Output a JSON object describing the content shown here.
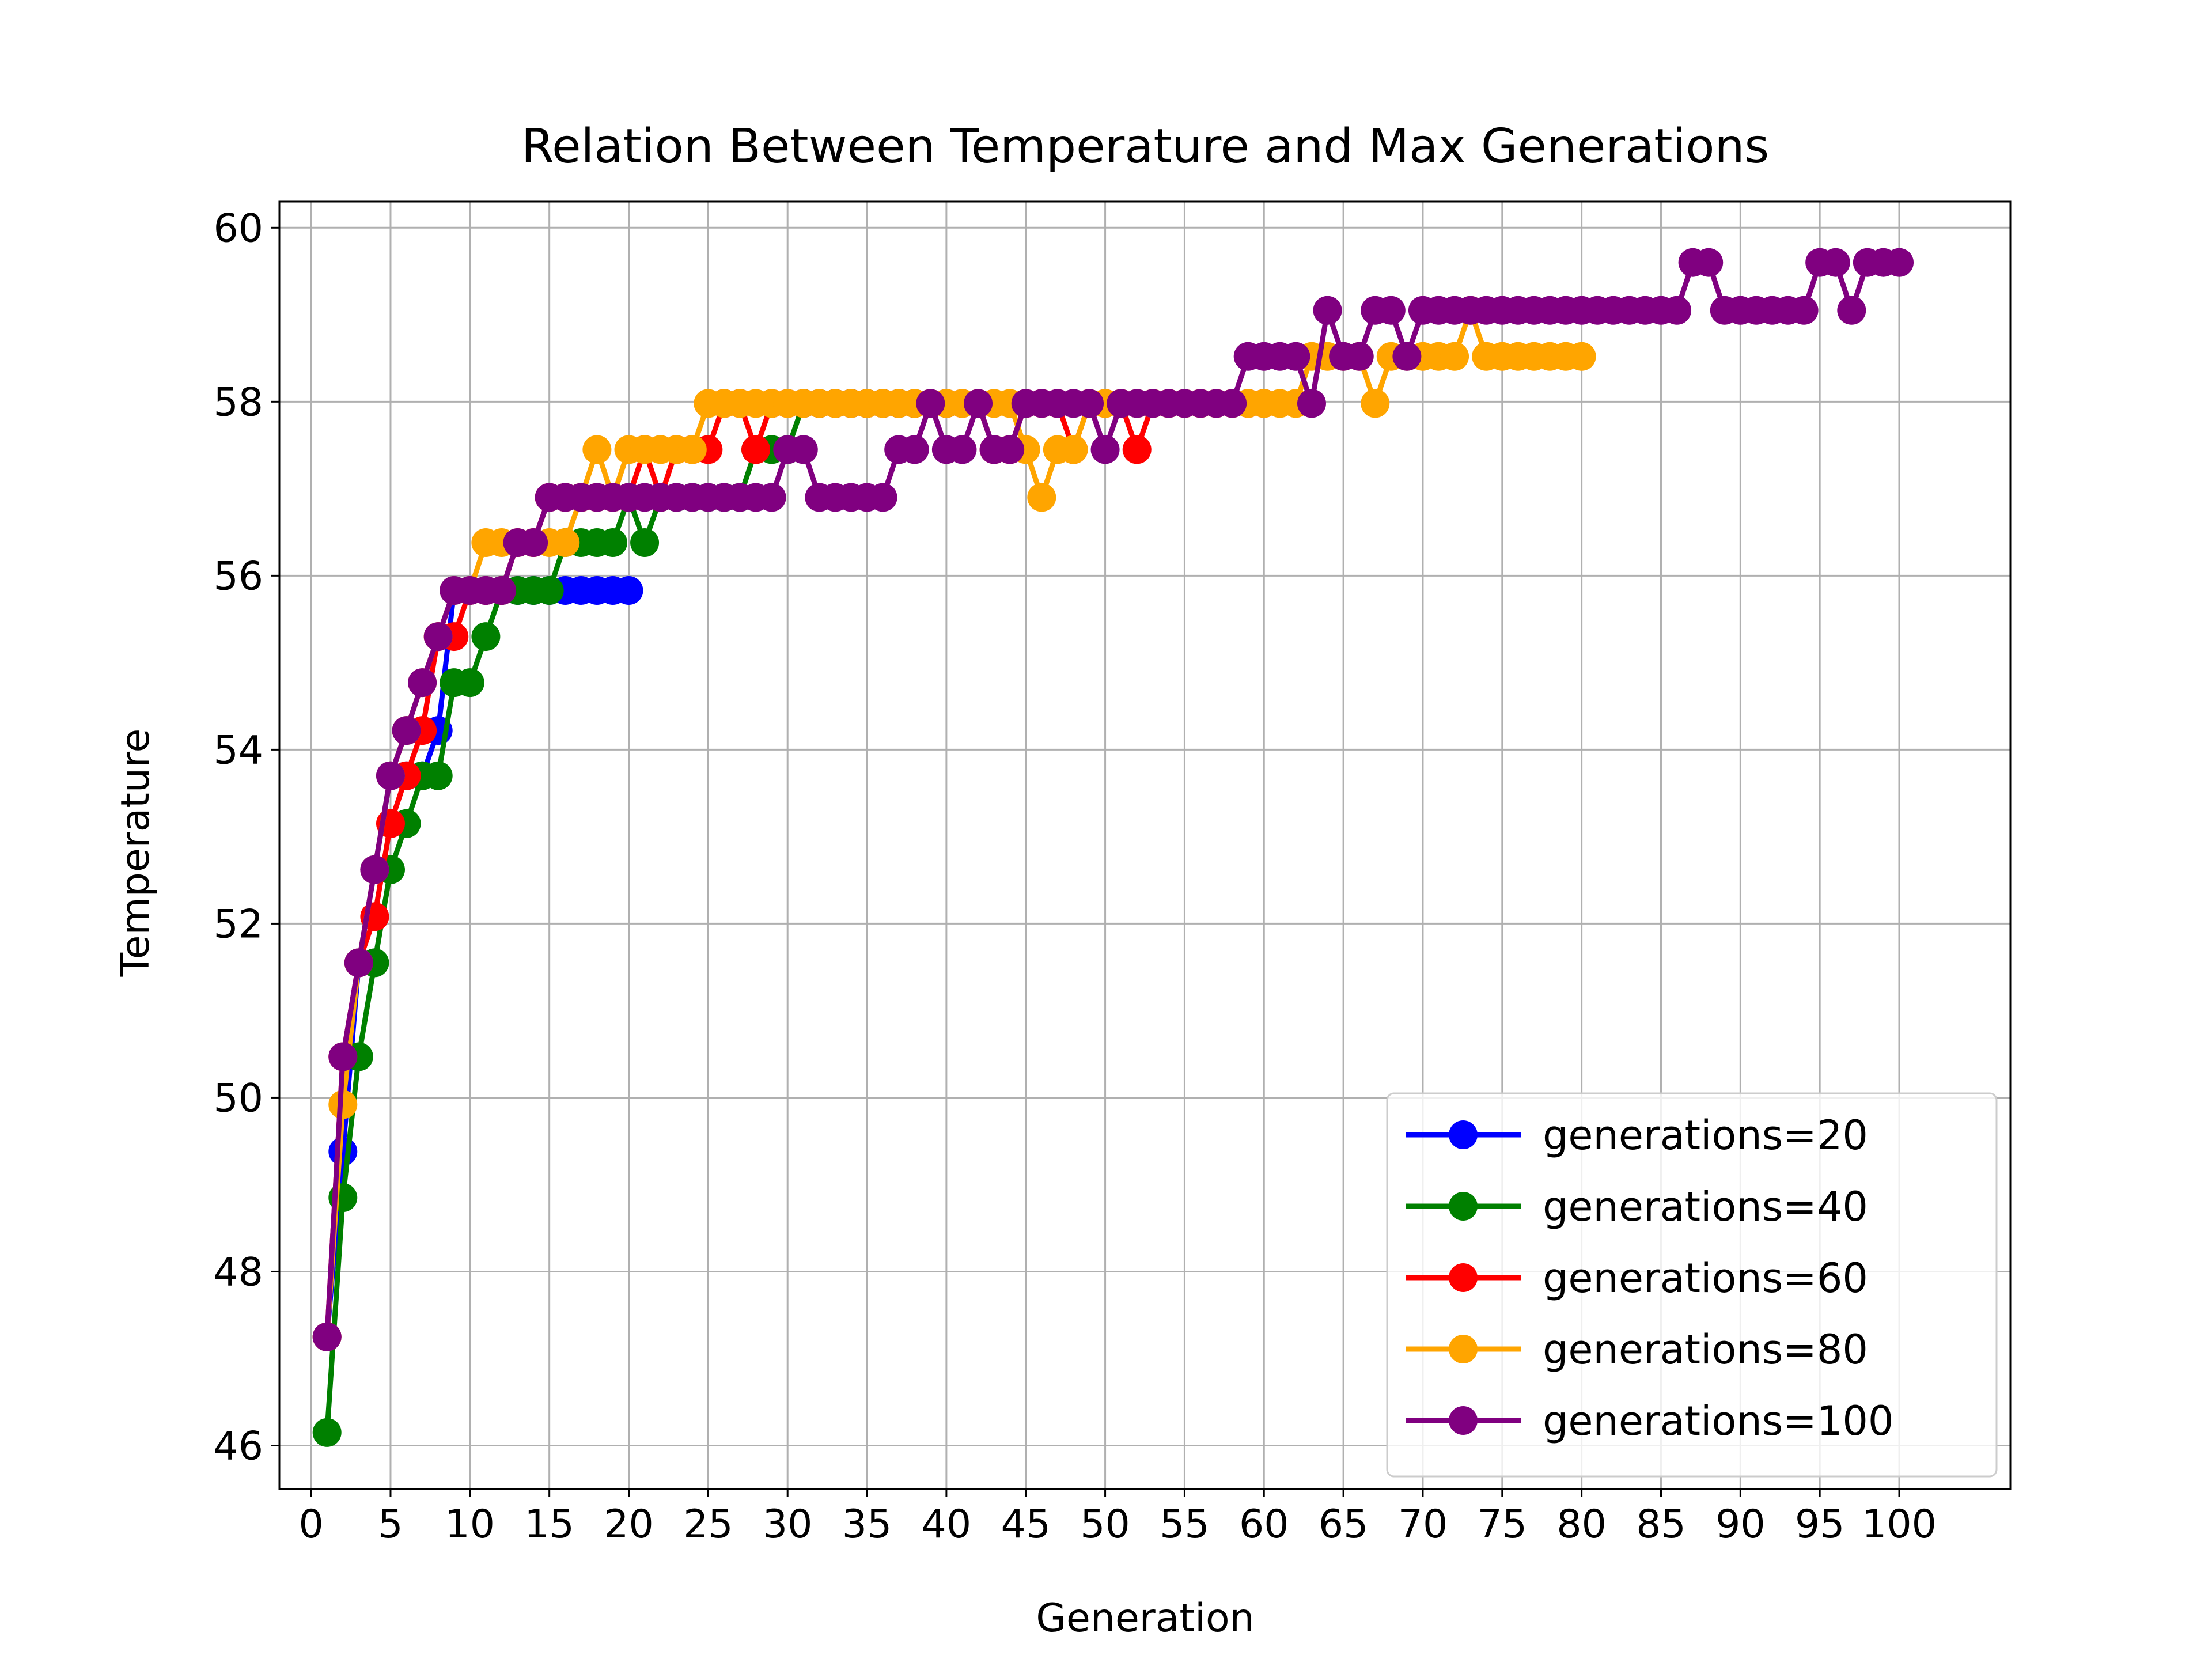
{
  "chart_data": {
    "type": "line",
    "title": "Relation Between Temperature and Max Generations",
    "xlabel": "Generation",
    "ylabel": "Temperature",
    "xlim": [
      -2,
      107
    ],
    "ylim": [
      45.5,
      60.3
    ],
    "xticks": [
      0,
      5,
      10,
      15,
      20,
      25,
      30,
      35,
      40,
      45,
      50,
      55,
      60,
      65,
      70,
      75,
      80,
      85,
      90,
      95,
      100
    ],
    "xtick_labels": [
      "0",
      "5",
      "10",
      "15",
      "20",
      "25",
      "30",
      "35",
      "40",
      "45",
      "50",
      "55",
      "60",
      "65",
      "70",
      "75",
      "80",
      "85",
      "90",
      "95",
      "100"
    ],
    "yticks": [
      46,
      48,
      50,
      52,
      54,
      56,
      58,
      60
    ],
    "ytick_labels": [
      "46",
      "48",
      "50",
      "52",
      "54",
      "56",
      "58",
      "60"
    ],
    "grid": true,
    "legend_position": "lower-right",
    "series": [
      {
        "name": "generations=20",
        "color": "#0000ff",
        "x": [
          1,
          2,
          3,
          4,
          5,
          6,
          7,
          8,
          9,
          10,
          11,
          12,
          13,
          14,
          15,
          16,
          17,
          18,
          19,
          20
        ],
        "values": [
          47.25,
          49.38,
          51.55,
          52.62,
          53.7,
          53.7,
          53.7,
          54.22,
          55.83,
          55.83,
          55.83,
          55.83,
          55.83,
          55.83,
          55.83,
          55.83,
          55.83,
          55.83,
          55.83,
          55.83
        ]
      },
      {
        "name": "generations=40",
        "color": "#008000",
        "x": [
          1,
          2,
          3,
          4,
          5,
          6,
          7,
          8,
          9,
          10,
          11,
          12,
          13,
          14,
          15,
          16,
          17,
          18,
          19,
          20,
          21,
          22,
          23,
          24,
          25,
          26,
          27,
          28,
          29,
          30,
          31,
          32,
          33,
          34,
          35,
          36,
          37,
          38,
          39,
          40
        ],
        "values": [
          46.15,
          48.85,
          50.47,
          51.55,
          52.62,
          53.15,
          53.7,
          53.7,
          54.77,
          54.77,
          55.3,
          55.83,
          55.83,
          55.83,
          55.83,
          56.38,
          56.38,
          56.38,
          56.38,
          56.9,
          56.38,
          56.9,
          56.9,
          56.9,
          56.9,
          56.9,
          56.9,
          57.45,
          57.45,
          57.45,
          57.98,
          57.98,
          57.98,
          57.98,
          57.98,
          57.98,
          57.98,
          57.98,
          57.98,
          57.98
        ]
      },
      {
        "name": "generations=60",
        "color": "#ff0000",
        "x": [
          1,
          2,
          3,
          4,
          5,
          6,
          7,
          8,
          9,
          10,
          11,
          12,
          13,
          14,
          15,
          16,
          17,
          18,
          19,
          20,
          21,
          22,
          23,
          24,
          25,
          26,
          27,
          28,
          29,
          30,
          31,
          32,
          33,
          34,
          35,
          36,
          37,
          38,
          39,
          40,
          41,
          42,
          43,
          44,
          45,
          46,
          47,
          48,
          49,
          50,
          51,
          52,
          53,
          54,
          55,
          56,
          57,
          58,
          59,
          60
        ],
        "values": [
          47.25,
          50.47,
          51.55,
          52.08,
          53.15,
          53.7,
          54.22,
          55.3,
          55.3,
          55.83,
          55.83,
          55.83,
          56.38,
          56.38,
          56.9,
          56.9,
          56.9,
          56.9,
          56.9,
          56.9,
          57.45,
          56.9,
          57.45,
          57.45,
          57.45,
          57.98,
          57.98,
          57.45,
          57.98,
          57.98,
          57.98,
          57.98,
          57.98,
          57.98,
          57.98,
          57.98,
          57.98,
          57.98,
          57.98,
          57.98,
          57.98,
          57.98,
          57.45,
          57.45,
          57.98,
          57.98,
          57.98,
          57.45,
          57.98,
          57.98,
          57.98,
          57.45,
          57.98,
          57.98,
          57.98,
          57.98,
          57.98,
          57.98,
          57.98,
          57.98
        ]
      },
      {
        "name": "generations=80",
        "color": "#ffa500",
        "x": [
          1,
          2,
          3,
          4,
          5,
          6,
          7,
          8,
          9,
          10,
          11,
          12,
          13,
          14,
          15,
          16,
          17,
          18,
          19,
          20,
          21,
          22,
          23,
          24,
          25,
          26,
          27,
          28,
          29,
          30,
          31,
          32,
          33,
          34,
          35,
          36,
          37,
          38,
          39,
          40,
          41,
          42,
          43,
          44,
          45,
          46,
          47,
          48,
          49,
          50,
          51,
          52,
          53,
          54,
          55,
          56,
          57,
          58,
          59,
          60,
          61,
          62,
          63,
          64,
          65,
          66,
          67,
          68,
          69,
          70,
          71,
          72,
          73,
          74,
          75,
          76,
          77,
          78,
          79,
          80
        ],
        "values": [
          47.25,
          49.92,
          51.55,
          52.62,
          53.7,
          54.22,
          54.77,
          55.3,
          55.83,
          55.83,
          56.38,
          56.38,
          56.38,
          56.38,
          56.38,
          56.38,
          56.9,
          57.45,
          56.9,
          57.45,
          57.45,
          57.45,
          57.45,
          57.45,
          57.98,
          57.98,
          57.98,
          57.98,
          57.98,
          57.98,
          57.98,
          57.98,
          57.98,
          57.98,
          57.98,
          57.98,
          57.98,
          57.98,
          57.98,
          57.98,
          57.98,
          57.98,
          57.98,
          57.98,
          57.45,
          56.9,
          57.45,
          57.45,
          57.98,
          57.98,
          57.98,
          57.98,
          57.98,
          57.98,
          57.98,
          57.98,
          57.98,
          57.98,
          57.98,
          57.98,
          57.98,
          57.98,
          58.52,
          58.52,
          58.52,
          58.52,
          57.98,
          58.52,
          58.52,
          58.52,
          58.52,
          58.52,
          59.05,
          58.52,
          58.52,
          58.52,
          58.52,
          58.52,
          58.52,
          58.52
        ]
      },
      {
        "name": "generations=100",
        "color": "#800080",
        "x": [
          1,
          2,
          3,
          4,
          5,
          6,
          7,
          8,
          9,
          10,
          11,
          12,
          13,
          14,
          15,
          16,
          17,
          18,
          19,
          20,
          21,
          22,
          23,
          24,
          25,
          26,
          27,
          28,
          29,
          30,
          31,
          32,
          33,
          34,
          35,
          36,
          37,
          38,
          39,
          40,
          41,
          42,
          43,
          44,
          45,
          46,
          47,
          48,
          49,
          50,
          51,
          52,
          53,
          54,
          55,
          56,
          57,
          58,
          59,
          60,
          61,
          62,
          63,
          64,
          65,
          66,
          67,
          68,
          69,
          70,
          71,
          72,
          73,
          74,
          75,
          76,
          77,
          78,
          79,
          80,
          81,
          82,
          83,
          84,
          85,
          86,
          87,
          88,
          89,
          90,
          91,
          92,
          93,
          94,
          95,
          96,
          97,
          98,
          99,
          100
        ],
        "values": [
          47.25,
          50.47,
          51.55,
          52.62,
          53.7,
          54.22,
          54.77,
          55.3,
          55.83,
          55.83,
          55.83,
          55.83,
          56.38,
          56.38,
          56.9,
          56.9,
          56.9,
          56.9,
          56.9,
          56.9,
          56.9,
          56.9,
          56.9,
          56.9,
          56.9,
          56.9,
          56.9,
          56.9,
          56.9,
          57.45,
          57.45,
          56.9,
          56.9,
          56.9,
          56.9,
          56.9,
          57.45,
          57.45,
          57.98,
          57.45,
          57.45,
          57.98,
          57.45,
          57.45,
          57.98,
          57.98,
          57.98,
          57.98,
          57.98,
          57.45,
          57.98,
          57.98,
          57.98,
          57.98,
          57.98,
          57.98,
          57.98,
          57.98,
          58.52,
          58.52,
          58.52,
          58.52,
          57.98,
          59.05,
          58.52,
          58.52,
          59.05,
          59.05,
          58.52,
          59.05,
          59.05,
          59.05,
          59.05,
          59.05,
          59.05,
          59.05,
          59.05,
          59.05,
          59.05,
          59.05,
          59.05,
          59.05,
          59.05,
          59.05,
          59.05,
          59.05,
          59.6,
          59.6,
          59.05,
          59.05,
          59.05,
          59.05,
          59.05,
          59.05,
          59.6,
          59.6,
          59.05,
          59.6,
          59.6,
          59.6
        ]
      }
    ]
  }
}
